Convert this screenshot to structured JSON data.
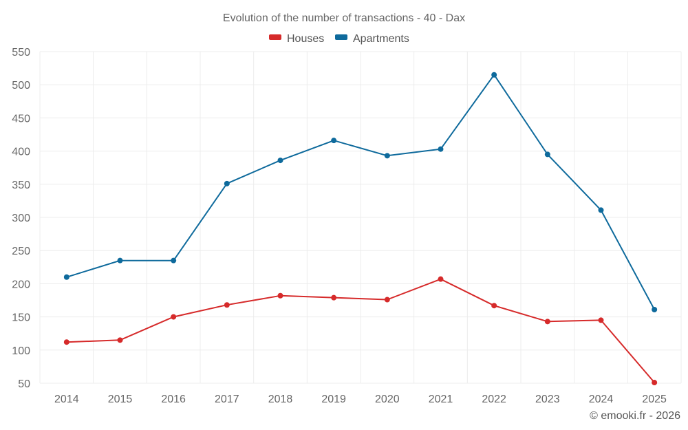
{
  "chart_data": {
    "type": "line",
    "title": "Evolution of the number of transactions - 40 - Dax",
    "categories": [
      "2014",
      "2015",
      "2016",
      "2017",
      "2018",
      "2019",
      "2020",
      "2021",
      "2022",
      "2023",
      "2024",
      "2025"
    ],
    "series": [
      {
        "name": "Houses",
        "color": "#d62a2a",
        "values": [
          112,
          115,
          150,
          168,
          182,
          179,
          176,
          207,
          167,
          143,
          145,
          51
        ]
      },
      {
        "name": "Apartments",
        "color": "#0e6a9c",
        "values": [
          210,
          235,
          235,
          351,
          386,
          416,
          393,
          403,
          515,
          395,
          311,
          161
        ]
      }
    ],
    "y_ticks": [
      "50",
      "100",
      "150",
      "200",
      "250",
      "300",
      "350",
      "400",
      "450",
      "500",
      "550"
    ],
    "ylim": [
      50,
      550
    ],
    "xlabel": "",
    "ylabel": "",
    "legend_position": "top-center",
    "grid": true
  },
  "credit": "© emooki.fr - 2026"
}
